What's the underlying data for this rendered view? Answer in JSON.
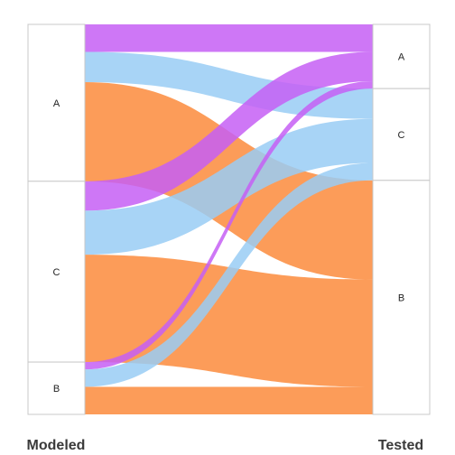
{
  "chart_data": {
    "type": "alluvial",
    "axes": [
      "Modeled",
      "Tested"
    ],
    "categories": {
      "Modeled": [
        "A",
        "C",
        "B"
      ],
      "Tested": [
        "A",
        "C",
        "B"
      ]
    },
    "colors": {
      "A": "#c65ff5",
      "C": "#99ccf5",
      "B": "#fc8b3c"
    },
    "flows": [
      {
        "from": "A",
        "to": "A",
        "color_key": "A",
        "value": 30
      },
      {
        "from": "A",
        "to": "C",
        "color_key": "C",
        "value": 33
      },
      {
        "from": "A",
        "to": "B",
        "color_key": "B",
        "value": 108
      },
      {
        "from": "C",
        "to": "A",
        "color_key": "A",
        "value": 32
      },
      {
        "from": "C",
        "to": "C",
        "color_key": "C",
        "value": 48
      },
      {
        "from": "C",
        "to": "B",
        "color_key": "B",
        "value": 117
      },
      {
        "from": "B",
        "to": "A",
        "color_key": "A",
        "value": 8
      },
      {
        "from": "B",
        "to": "C",
        "color_key": "C",
        "value": 19
      },
      {
        "from": "B",
        "to": "B",
        "color_key": "B",
        "value": 30
      }
    ]
  }
}
